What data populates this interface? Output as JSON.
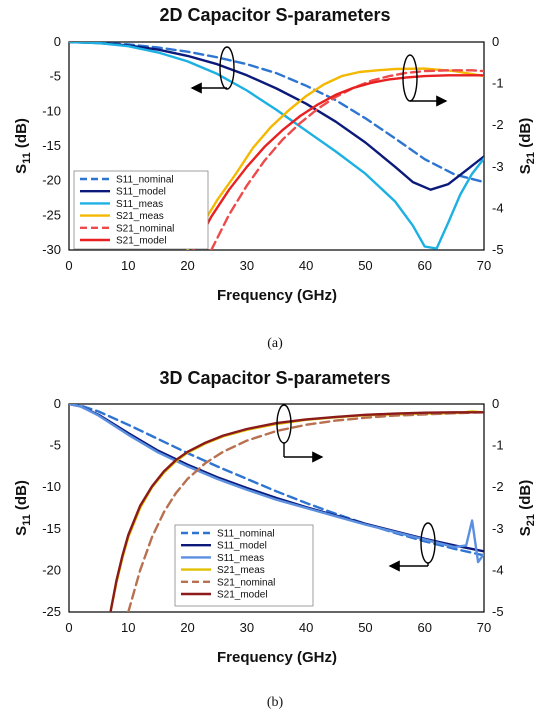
{
  "chart_data": [
    {
      "type": "line",
      "title": "2D Capacitor S-parameters",
      "xlabel": "Frequency (GHz)",
      "ylabel": "S",
      "ylabel_sub": "11",
      "ylabel_unit": " (dB)",
      "y2label": "S",
      "y2label_sub": "21",
      "y2label_unit": " (dB)",
      "xlim": [
        0,
        70
      ],
      "ylim": [
        -30,
        0
      ],
      "y2lim": [
        -5,
        0
      ],
      "xticks": [
        "0",
        "10",
        "20",
        "30",
        "40",
        "50",
        "60",
        "70"
      ],
      "yticks": [
        "0",
        "-5",
        "-10",
        "-15",
        "-20",
        "-25",
        "-30"
      ],
      "y2ticks": [
        "0",
        "-1",
        "-2",
        "-3",
        "-4",
        "-5"
      ],
      "grid": false,
      "legend_position": "bottom-left",
      "caption": "(a)",
      "series": [
        {
          "name": "S11_nominal",
          "axis": "left",
          "color": "#2E75D1",
          "dash": true,
          "x": [
            0,
            5,
            10,
            15,
            20,
            25,
            30,
            35,
            40,
            45,
            50,
            55,
            60,
            65,
            70
          ],
          "y": [
            0,
            -0.1,
            -0.35,
            -0.8,
            -1.4,
            -2.2,
            -3.2,
            -4.5,
            -6.3,
            -8.4,
            -11,
            -13.9,
            -16.9,
            -19.1,
            -20.2
          ]
        },
        {
          "name": "S11_model",
          "axis": "left",
          "color": "#0B1A7A",
          "dash": false,
          "x": [
            0,
            5,
            10,
            15,
            20,
            25,
            30,
            35,
            40,
            45,
            50,
            55,
            58,
            61,
            64,
            67,
            70
          ],
          "y": [
            0,
            -0.15,
            -0.5,
            -1.1,
            -2,
            -3.2,
            -4.8,
            -6.7,
            -8.9,
            -11.5,
            -14.5,
            -18,
            -20.2,
            -21.3,
            -20.5,
            -18.5,
            -16.5
          ]
        },
        {
          "name": "S11_meas",
          "axis": "left",
          "color": "#1CB0E3",
          "dash": false,
          "x": [
            0,
            5,
            10,
            15,
            20,
            25,
            30,
            35,
            40,
            45,
            50,
            55,
            58,
            60,
            62,
            64,
            66,
            68,
            70
          ],
          "y": [
            0,
            -0.15,
            -0.6,
            -1.5,
            -2.8,
            -4.6,
            -7,
            -9.8,
            -12.8,
            -15.8,
            -19,
            -23,
            -26.5,
            -29.5,
            -29.8,
            -26,
            -22,
            -19,
            -16.8
          ]
        },
        {
          "name": "S21_meas",
          "axis": "right",
          "color": "#F5B800",
          "dash": false,
          "x": [
            20,
            22,
            25,
            28,
            31,
            34,
            37,
            40,
            43,
            46,
            49,
            52,
            55,
            60,
            65,
            70
          ],
          "y": [
            -5,
            -4.5,
            -3.8,
            -3.2,
            -2.55,
            -2.05,
            -1.65,
            -1.3,
            -1.02,
            -0.82,
            -0.72,
            -0.68,
            -0.65,
            -0.64,
            -0.7,
            -0.82
          ]
        },
        {
          "name": "S21_nominal",
          "axis": "right",
          "color": "#EE4A4A",
          "dash": true,
          "x": [
            24,
            27,
            30,
            33,
            36,
            39,
            42,
            45,
            48,
            51,
            54,
            57,
            60,
            64,
            68,
            70
          ],
          "y": [
            -5,
            -4.15,
            -3.45,
            -2.85,
            -2.35,
            -1.95,
            -1.6,
            -1.32,
            -1.1,
            -0.93,
            -0.82,
            -0.74,
            -0.7,
            -0.68,
            -0.68,
            -0.7
          ]
        },
        {
          "name": "S21_model",
          "axis": "right",
          "color": "#E82020",
          "dash": false,
          "x": [
            21,
            24,
            27,
            30,
            33,
            36,
            39,
            42,
            45,
            48,
            51,
            54,
            57,
            60,
            64,
            68,
            70
          ],
          "y": [
            -5,
            -4.2,
            -3.55,
            -3,
            -2.52,
            -2.12,
            -1.78,
            -1.5,
            -1.27,
            -1.1,
            -0.98,
            -0.9,
            -0.85,
            -0.82,
            -0.8,
            -0.8,
            -0.8
          ]
        }
      ]
    },
    {
      "type": "line",
      "title": "3D Capacitor S-parameters",
      "xlabel": "Frequency (GHz)",
      "ylabel": "S",
      "ylabel_sub": "11",
      "ylabel_unit": " (dB)",
      "y2label": "S",
      "y2label_sub": "21",
      "y2label_unit": " (dB)",
      "xlim": [
        0,
        70
      ],
      "ylim": [
        -25,
        0
      ],
      "y2lim": [
        -5,
        0
      ],
      "xticks": [
        "0",
        "10",
        "20",
        "30",
        "40",
        "50",
        "60",
        "70"
      ],
      "yticks": [
        "0",
        "-5",
        "-10",
        "-15",
        "-20",
        "-25"
      ],
      "y2ticks": [
        "0",
        "-1",
        "-2",
        "-3",
        "-4",
        "-5"
      ],
      "grid": false,
      "legend_position": "bottom-center",
      "caption": "(b)",
      "series": [
        {
          "name": "S11_nominal",
          "axis": "left",
          "color": "#2E75D1",
          "dash": true,
          "x": [
            0,
            2,
            5,
            10,
            15,
            20,
            25,
            30,
            35,
            40,
            45,
            50,
            55,
            60,
            65,
            70
          ],
          "y": [
            0,
            -0.2,
            -0.9,
            -2.5,
            -4.2,
            -5.9,
            -7.5,
            -9,
            -10.5,
            -11.9,
            -13.2,
            -14.4,
            -15.5,
            -16.5,
            -17.4,
            -18.2
          ]
        },
        {
          "name": "S11_model",
          "axis": "left",
          "color": "#0B1A7A",
          "dash": false,
          "x": [
            0,
            2,
            5,
            10,
            15,
            20,
            25,
            30,
            35,
            40,
            45,
            50,
            55,
            60,
            65,
            70
          ],
          "y": [
            0,
            -0.3,
            -1.3,
            -3.5,
            -5.6,
            -7.3,
            -8.8,
            -10.1,
            -11.3,
            -12.4,
            -13.4,
            -14.4,
            -15.3,
            -16.2,
            -17,
            -17.7
          ]
        },
        {
          "name": "S11_meas",
          "axis": "left",
          "color": "#5B8FE0",
          "dash": false,
          "x": [
            0,
            2,
            5,
            10,
            15,
            20,
            25,
            30,
            35,
            40,
            45,
            50,
            55,
            60,
            65,
            67,
            68,
            69,
            70
          ],
          "y": [
            0,
            -0.3,
            -1.4,
            -3.7,
            -5.8,
            -7.5,
            -9,
            -10.3,
            -11.5,
            -12.5,
            -13.5,
            -14.5,
            -15.4,
            -16.3,
            -17.2,
            -17,
            -14,
            -19,
            -18
          ]
        },
        {
          "name": "S21_meas",
          "axis": "right",
          "color": "#E0C000",
          "dash": false,
          "x": [
            7,
            8,
            9,
            10,
            12,
            14,
            16,
            18,
            20,
            23,
            26,
            30,
            35,
            40,
            45,
            50,
            55,
            60,
            65,
            68,
            70
          ],
          "y": [
            -5,
            -4.3,
            -3.7,
            -3.2,
            -2.5,
            -2,
            -1.65,
            -1.38,
            -1.17,
            -0.95,
            -0.78,
            -0.62,
            -0.48,
            -0.38,
            -0.32,
            -0.27,
            -0.25,
            -0.23,
            -0.22,
            -0.18,
            -0.2
          ]
        },
        {
          "name": "S21_nominal",
          "axis": "right",
          "color": "#B87050",
          "dash": true,
          "x": [
            10,
            11,
            12,
            14,
            16,
            18,
            20,
            23,
            26,
            30,
            35,
            40,
            45,
            50,
            55,
            60,
            65,
            70
          ],
          "y": [
            -5,
            -4.5,
            -4,
            -3.2,
            -2.6,
            -2.15,
            -1.8,
            -1.42,
            -1.15,
            -0.88,
            -0.65,
            -0.5,
            -0.4,
            -0.33,
            -0.28,
            -0.25,
            -0.22,
            -0.2
          ]
        },
        {
          "name": "S21_model",
          "axis": "right",
          "color": "#8B1A1A",
          "dash": false,
          "x": [
            7,
            8,
            9,
            10,
            12,
            14,
            16,
            18,
            20,
            23,
            26,
            30,
            35,
            40,
            45,
            50,
            55,
            60,
            65,
            70
          ],
          "y": [
            -5,
            -4.25,
            -3.65,
            -3.15,
            -2.45,
            -1.98,
            -1.62,
            -1.35,
            -1.15,
            -0.93,
            -0.76,
            -0.6,
            -0.46,
            -0.37,
            -0.31,
            -0.26,
            -0.23,
            -0.21,
            -0.2,
            -0.2
          ]
        }
      ]
    }
  ]
}
